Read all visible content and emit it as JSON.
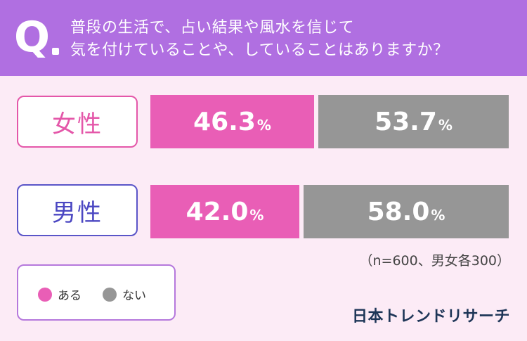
{
  "question": {
    "mark": "Q",
    "line1": "普段の生活で、占い結果や風水を信じて",
    "line2": "気を付けていることや、していることはありますか？"
  },
  "chart_data": {
    "type": "bar",
    "orientation": "horizontal",
    "stacked": true,
    "percent_stacked": true,
    "categories": [
      "女性",
      "男性"
    ],
    "series": [
      {
        "name": "ある",
        "color": "#e95eb6",
        "values": [
          46.3,
          42.0
        ]
      },
      {
        "name": "ない",
        "color": "#969696",
        "values": [
          53.7,
          58.0
        ]
      }
    ],
    "value_labels": {
      "女性": [
        "46.3",
        "53.7"
      ],
      "男性": [
        "42.0",
        "58.0"
      ]
    },
    "unit": "%",
    "legend_placement": "bottom-left",
    "grid": false
  },
  "legend": {
    "yes_label": "ある",
    "no_label": "ない"
  },
  "note": "（n=600、男女各300）",
  "logo": "日本トレンドリサーチ",
  "colors": {
    "header": "#b06fe1",
    "female_border": "#e457a9",
    "male_border": "#5a55c8",
    "yes": "#e95eb6",
    "no": "#969696"
  }
}
